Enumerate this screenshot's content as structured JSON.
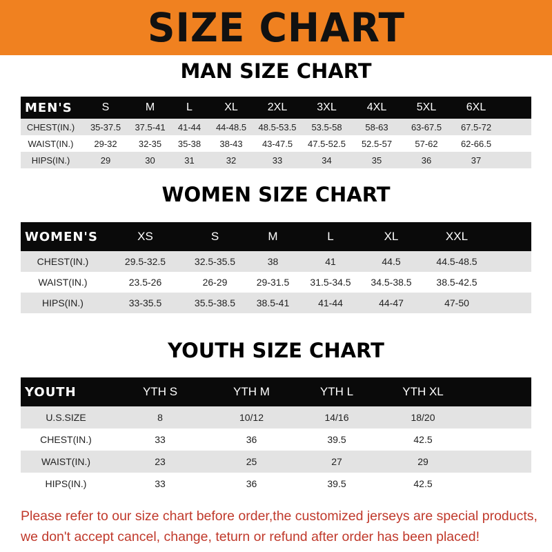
{
  "banner": {
    "title": "SIZE CHART",
    "color": "#f08120"
  },
  "men": {
    "title": "MAN SIZE CHART",
    "header": [
      "MEN'S",
      "S",
      "M",
      "L",
      "XL",
      "2XL",
      "3XL",
      "4XL",
      "5XL",
      "6XL"
    ],
    "rows": [
      [
        "CHEST(IN.)",
        "35-37.5",
        "37.5-41",
        "41-44",
        "44-48.5",
        "48.5-53.5",
        "53.5-58",
        "58-63",
        "63-67.5",
        "67.5-72"
      ],
      [
        "WAIST(IN.)",
        "29-32",
        "32-35",
        "35-38",
        "38-43",
        "43-47.5",
        "47.5-52.5",
        "52.5-57",
        "57-62",
        "62-66.5"
      ],
      [
        "HIPS(IN.)",
        "29",
        "30",
        "31",
        "32",
        "33",
        "34",
        "35",
        "36",
        "37"
      ]
    ]
  },
  "women": {
    "title": "WOMEN SIZE CHART",
    "header": [
      "WOMEN'S",
      "XS",
      "S",
      "M",
      "L",
      "XL",
      "XXL"
    ],
    "rows": [
      [
        "CHEST(IN.)",
        "29.5-32.5",
        "32.5-35.5",
        "38",
        "41",
        "44.5",
        "44.5-48.5"
      ],
      [
        "WAIST(IN.)",
        "23.5-26",
        "26-29",
        "29-31.5",
        "31.5-34.5",
        "34.5-38.5",
        "38.5-42.5"
      ],
      [
        "HIPS(IN.)",
        "33-35.5",
        "35.5-38.5",
        "38.5-41",
        "41-44",
        "44-47",
        "47-50"
      ]
    ]
  },
  "youth": {
    "title": "YOUTH SIZE CHART",
    "header": [
      "YOUTH",
      "YTH S",
      "YTH M",
      "YTH L",
      "YTH XL"
    ],
    "rows": [
      [
        "U.S.SIZE",
        "8",
        "10/12",
        "14/16",
        "18/20"
      ],
      [
        "CHEST(IN.)",
        "33",
        "36",
        "39.5",
        "42.5"
      ],
      [
        "WAIST(IN.)",
        "23",
        "25",
        "27",
        "29"
      ],
      [
        "HIPS(IN.)",
        "33",
        "36",
        "39.5",
        "42.5"
      ]
    ]
  },
  "note": {
    "line1": "Please refer to our size chart before order,the customized jerseys are special products,",
    "line2": "we don't accept cancel, change, teturn or refund after order has been placed!",
    "color": "#c0392b"
  }
}
